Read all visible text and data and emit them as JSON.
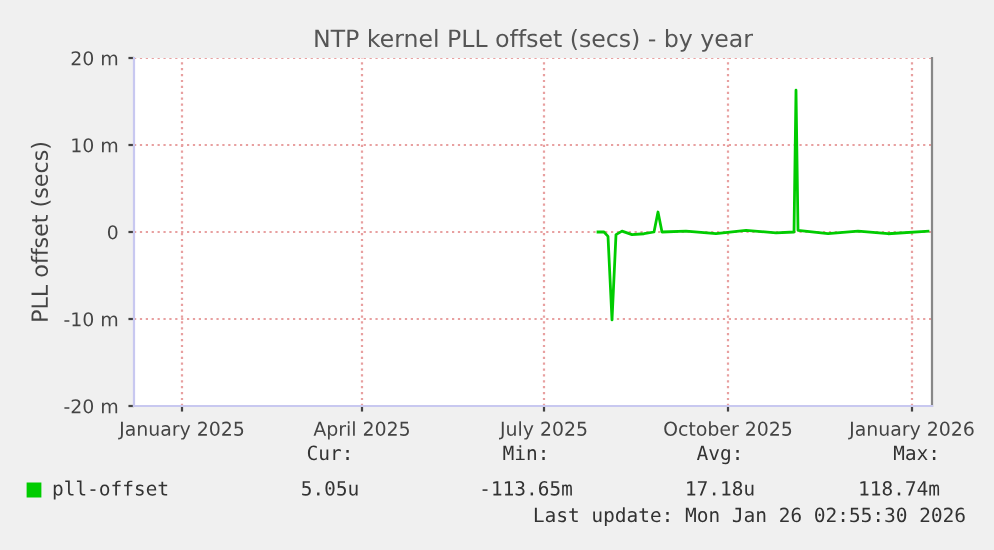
{
  "chart_data": {
    "type": "line",
    "title": "NTP kernel PLL offset (secs) - by year",
    "ylabel": "PLL offset (secs)",
    "x": [
      "2025-07-28",
      "2025-07-31",
      "2025-08-02",
      "2025-08-04",
      "2025-08-06",
      "2025-08-09",
      "2025-08-14",
      "2025-08-20",
      "2025-08-25",
      "2025-08-27",
      "2025-08-29",
      "2025-09-10",
      "2025-09-25",
      "2025-10-10",
      "2025-10-25",
      "2025-11-03",
      "2025-11-04",
      "2025-11-05",
      "2025-11-20",
      "2025-12-05",
      "2025-12-20",
      "2026-01-09"
    ],
    "series": [
      {
        "name": "pll-offset",
        "color": "#00cc00",
        "values": [
          0,
          0,
          -0.5,
          -10.1,
          -0.3,
          0.1,
          -0.3,
          -0.2,
          0,
          2.3,
          0,
          0.1,
          -0.2,
          0.2,
          -0.1,
          0,
          16.3,
          0.2,
          -0.2,
          0.1,
          -0.2,
          0.1
        ]
      }
    ],
    "xlim": [
      "2024-12-08",
      "2026-01-11"
    ],
    "xticks": [
      {
        "value": "2025-01-01",
        "label": "January 2025"
      },
      {
        "value": "2025-04-01",
        "label": "April 2025"
      },
      {
        "value": "2025-07-01",
        "label": "July 2025"
      },
      {
        "value": "2025-10-01",
        "label": "October 2025"
      },
      {
        "value": "2026-01-01",
        "label": "January 2026"
      }
    ],
    "ylim": [
      -20,
      20
    ],
    "yticks": [
      {
        "value": -20,
        "label": "-20 m"
      },
      {
        "value": -10,
        "label": "-10 m"
      },
      {
        "value": 0,
        "label": "0"
      },
      {
        "value": 10,
        "label": "10 m"
      },
      {
        "value": 20,
        "label": "20 m"
      }
    ],
    "grid": true,
    "legend": "bottom",
    "marker": "none",
    "line_style": "solid",
    "annotations": [
      "Cur:",
      "Min:",
      "Avg:",
      "Max:",
      "5.05u",
      "-113.65m",
      "17.18u",
      "118.74m",
      "Last update: Mon Jan 26 02:55:30 2026"
    ]
  }
}
